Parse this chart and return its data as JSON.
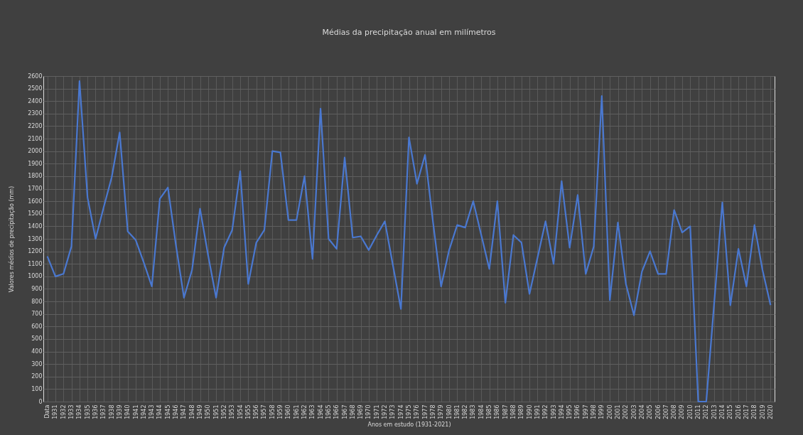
{
  "chart_data": {
    "type": "line",
    "title": "Médias da precipitação anual em milímetros",
    "xlabel": "Anos em estudo (1931-2021)",
    "ylabel": "Valores médios de precipitação (mm)",
    "categories": [
      "Data",
      "1931",
      "1932",
      "1933",
      "1934",
      "1935",
      "1936",
      "1937",
      "1938",
      "1939",
      "1940",
      "1941",
      "1942",
      "1943",
      "1944",
      "1945",
      "1946",
      "1947",
      "1948",
      "1949",
      "1950",
      "1951",
      "1952",
      "1953",
      "1954",
      "1955",
      "1956",
      "1957",
      "1958",
      "1959",
      "1960",
      "1961",
      "1962",
      "1963",
      "1964",
      "1965",
      "1966",
      "1967",
      "1968",
      "1969",
      "1970",
      "1971",
      "1972",
      "1973",
      "1974",
      "1975",
      "1976",
      "1977",
      "1978",
      "1979",
      "1980",
      "1981",
      "1982",
      "1983",
      "1984",
      "1985",
      "1986",
      "1987",
      "1988",
      "1989",
      "1990",
      "1991",
      "1992",
      "1993",
      "1994",
      "1995",
      "1996",
      "1997",
      "1998",
      "1999",
      "2000",
      "2001",
      "2002",
      "2003",
      "2004",
      "2005",
      "2006",
      "2007",
      "2008",
      "2009",
      "2010",
      "2011",
      "2012",
      "2013",
      "2014",
      "2015",
      "2016",
      "2017",
      "2018",
      "2019",
      "2020"
    ],
    "series": [
      {
        "color": "#4a78d0",
        "values": [
          1160,
          1000,
          1020,
          1240,
          2560,
          1630,
          1300,
          1550,
          1790,
          2150,
          1360,
          1290,
          1110,
          920,
          1620,
          1710,
          1250,
          830,
          1050,
          1540,
          1170,
          830,
          1230,
          1370,
          1840,
          940,
          1270,
          1370,
          2000,
          1990,
          1450,
          1450,
          1800,
          1140,
          2340,
          1300,
          1220,
          1950,
          1310,
          1320,
          1210,
          1330,
          1440,
          1090,
          740,
          2110,
          1740,
          1970,
          1430,
          920,
          1210,
          1410,
          1390,
          1600,
          1330,
          1060,
          1600,
          790,
          1330,
          1270,
          860,
          1150,
          1440,
          1100,
          1760,
          1230,
          1650,
          1020,
          1240,
          2440,
          810,
          1430,
          940,
          690,
          1040,
          1200,
          1020,
          1020,
          1530,
          1350,
          1400,
          0,
          0,
          800,
          1590,
          770,
          1220,
          920,
          1410,
          1050,
          770
        ]
      }
    ],
    "ylim": [
      0,
      2600
    ],
    "yticks": [
      0,
      100,
      200,
      300,
      400,
      500,
      600,
      700,
      800,
      900,
      1000,
      1100,
      1200,
      1300,
      1400,
      1500,
      1600,
      1700,
      1800,
      1900,
      2000,
      2100,
      2200,
      2300,
      2400,
      2500,
      2600
    ],
    "grid": true,
    "line_style": "solid",
    "marker": "none"
  }
}
